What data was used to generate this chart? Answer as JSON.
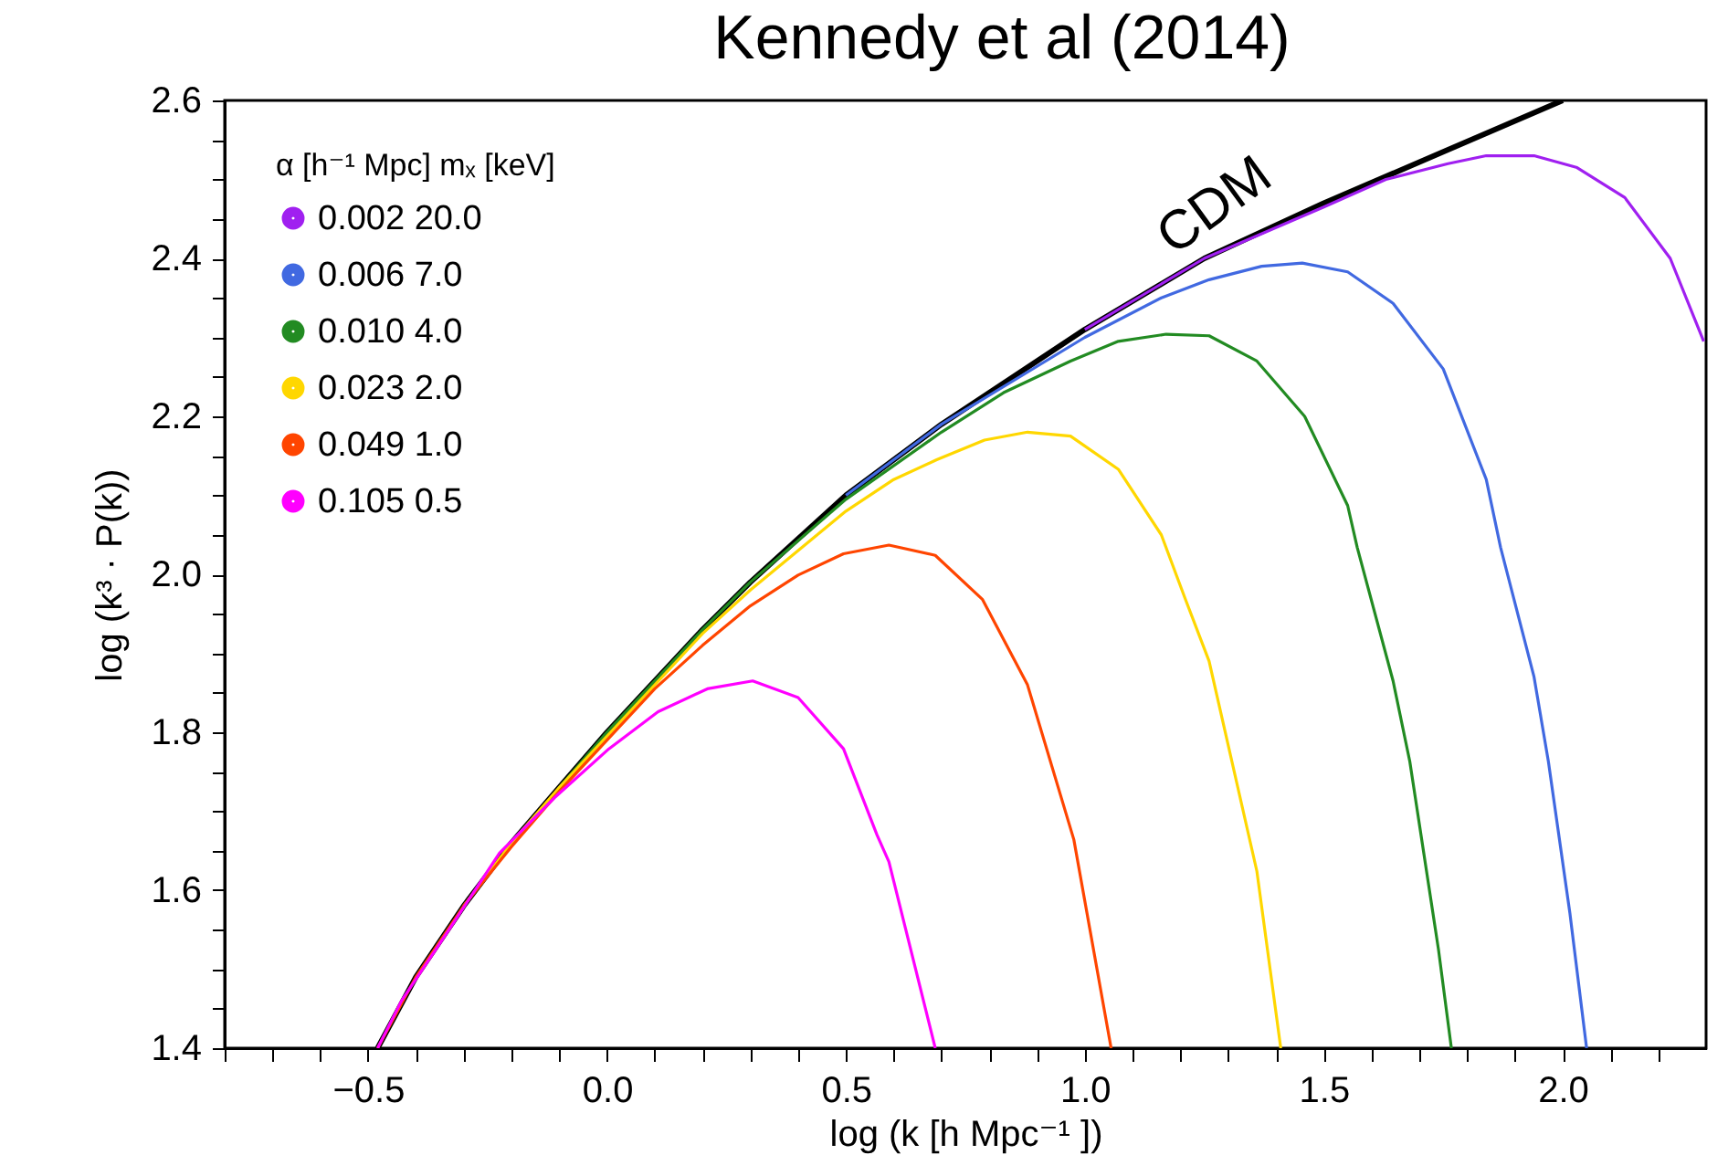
{
  "chart_data": {
    "type": "line",
    "title": "Kennedy et al (2014)",
    "xlabel": "log (k [h Mpc⁻¹ ])",
    "ylabel": "log (k³ · P(k))",
    "legend_title": "α [h⁻¹ Mpc]   mₓ [keV]",
    "legend": "top left",
    "grid": false,
    "marker": "none",
    "line_style": "solid",
    "xlim": [
      -0.8,
      2.3
    ],
    "ylim": [
      1.4,
      2.6
    ],
    "xticks": [
      {
        "value": -0.8,
        "label": null
      },
      {
        "value": -0.7,
        "label": null
      },
      {
        "value": -0.6,
        "label": null
      },
      {
        "value": -0.5,
        "label": "−0.5"
      },
      {
        "value": -0.4,
        "label": null
      },
      {
        "value": -0.3,
        "label": null
      },
      {
        "value": -0.2,
        "label": null
      },
      {
        "value": -0.1,
        "label": null
      },
      {
        "value": 0,
        "label": "0.0"
      },
      {
        "value": 0.1,
        "label": null
      },
      {
        "value": 0.2,
        "label": null
      },
      {
        "value": 0.3,
        "label": null
      },
      {
        "value": 0.4,
        "label": null
      },
      0.5,
      {
        "value": 0.6,
        "label": null
      },
      {
        "value": 0.7,
        "label": null
      },
      {
        "value": 0.8,
        "label": null
      },
      {
        "value": 0.9,
        "label": null
      },
      {
        "value": 1,
        "label": "1.0"
      },
      {
        "value": 1.1,
        "label": null
      },
      {
        "value": 1.2,
        "label": null
      },
      {
        "value": 1.3,
        "label": null
      },
      {
        "value": 1.4,
        "label": null
      },
      1.5,
      {
        "value": 1.6,
        "label": null
      },
      {
        "value": 1.7,
        "label": null
      },
      {
        "value": 1.8,
        "label": null
      },
      {
        "value": 1.9,
        "label": null
      },
      {
        "value": 2,
        "label": "2.0"
      },
      {
        "value": 2.1,
        "label": null
      },
      {
        "value": 2.2,
        "label": null
      }
    ],
    "yticks": [
      1.4,
      {
        "value": 1.45,
        "label": null
      },
      {
        "value": 1.5,
        "label": null
      },
      {
        "value": 1.55,
        "label": null
      },
      1.6,
      {
        "value": 1.65,
        "label": null
      },
      {
        "value": 1.7,
        "label": null
      },
      {
        "value": 1.75,
        "label": null
      },
      1.8,
      {
        "value": 1.85,
        "label": null
      },
      {
        "value": 1.9,
        "label": null
      },
      {
        "value": 1.95,
        "label": null
      },
      {
        "value": 2,
        "label": "2.0"
      },
      {
        "value": 2.05,
        "label": null
      },
      {
        "value": 2.1,
        "label": null
      },
      {
        "value": 2.15,
        "label": null
      },
      2.2,
      {
        "value": 2.25,
        "label": null
      },
      {
        "value": 2.3,
        "label": null
      },
      {
        "value": 2.35,
        "label": null
      },
      2.4,
      {
        "value": 2.45,
        "label": null
      },
      {
        "value": 2.5,
        "label": null
      },
      {
        "value": 2.55,
        "label": null
      },
      2.6
    ],
    "annotations": [
      "CDM"
    ],
    "series": [
      {
        "color": "#000000",
        "x": [
          -0.48,
          -0.4,
          -0.3,
          -0.2,
          -0.1,
          0,
          0.1,
          0.2,
          0.3,
          0.5,
          0.7,
          1.0,
          1.25,
          1.5,
          1.75,
          2.0
        ],
        "values": [
          1.4,
          1.49,
          1.58,
          1.66,
          1.73,
          1.8,
          1.865,
          1.93,
          1.99,
          2.1,
          2.19,
          2.31,
          2.4,
          2.47,
          2.535,
          2.6
        ]
      },
      {
        "name": "0.002 20.0",
        "color": "#a020f0",
        "x": [
          1.0,
          1.25,
          1.5,
          1.63,
          1.76,
          1.84,
          1.94,
          2.03,
          2.13,
          2.225,
          2.295
        ],
        "values": [
          2.31,
          2.4,
          2.465,
          2.5,
          2.52,
          2.53,
          2.53,
          2.515,
          2.477,
          2.4,
          2.295
        ]
      },
      {
        "name": "0.006 7.0",
        "color": "#4169e1",
        "x": [
          0.5,
          0.7,
          1.0,
          1.16,
          1.26,
          1.37,
          1.455,
          1.55,
          1.645,
          1.75,
          1.84,
          1.87,
          1.94,
          1.97,
          2.015,
          2.05
        ],
        "values": [
          2.1,
          2.19,
          2.3,
          2.35,
          2.373,
          2.39,
          2.394,
          2.383,
          2.343,
          2.26,
          2.12,
          2.034,
          1.87,
          1.763,
          1.571,
          1.4
        ]
      },
      {
        "name": "0.010 4.0",
        "color": "#228b22",
        "x": [
          -0.1,
          0,
          0.1,
          0.2,
          0.3,
          0.5,
          0.7,
          0.83,
          0.97,
          1.07,
          1.17,
          1.26,
          1.36,
          1.46,
          1.55,
          1.57,
          1.645,
          1.68,
          1.74,
          1.767
        ],
        "values": [
          1.73,
          1.8,
          1.865,
          1.93,
          1.99,
          2.095,
          2.18,
          2.23,
          2.27,
          2.295,
          2.304,
          2.302,
          2.27,
          2.2,
          2.087,
          2.034,
          1.865,
          1.763,
          1.525,
          1.4
        ]
      },
      {
        "name": "0.023 2.0",
        "color": "#ffd700",
        "x": [
          -0.3,
          -0.2,
          -0.1,
          0,
          0.1,
          0.2,
          0.3,
          0.5,
          0.6,
          0.69,
          0.79,
          0.88,
          0.97,
          1.07,
          1.16,
          1.21,
          1.26,
          1.36,
          1.41
        ],
        "values": [
          1.58,
          1.66,
          1.73,
          1.795,
          1.86,
          1.925,
          1.98,
          2.08,
          2.12,
          2.145,
          2.17,
          2.18,
          2.175,
          2.133,
          2.05,
          1.969,
          1.89,
          1.624,
          1.4
        ]
      },
      {
        "name": "0.049 1.0",
        "color": "#ff4500",
        "x": [
          -0.48,
          -0.4,
          -0.3,
          -0.2,
          -0.1,
          0,
          0.1,
          0.2,
          0.3,
          0.4,
          0.495,
          0.59,
          0.687,
          0.786,
          0.88,
          0.977,
          1.055
        ],
        "values": [
          1.4,
          1.49,
          1.58,
          1.655,
          1.725,
          1.79,
          1.855,
          1.91,
          1.96,
          1.999,
          2.026,
          2.037,
          2.024,
          1.968,
          1.86,
          1.664,
          1.4
        ]
      },
      {
        "name": "0.105 0.5",
        "color": "#ff00ff",
        "x": [
          -0.48,
          -0.43,
          -0.325,
          -0.225,
          -0.11,
          0.004,
          0.107,
          0.21,
          0.305,
          0.4,
          0.495,
          0.565,
          0.59,
          0.687
        ],
        "values": [
          1.4,
          1.46,
          1.555,
          1.647,
          1.717,
          1.779,
          1.826,
          1.855,
          1.865,
          1.844,
          1.779,
          1.67,
          1.636,
          1.4
        ]
      }
    ]
  }
}
